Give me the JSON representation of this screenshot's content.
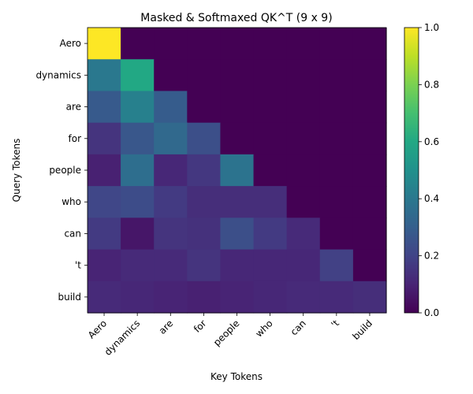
{
  "chart_data": {
    "type": "heatmap",
    "title": "Masked & Softmaxed QK^T (9 x 9)",
    "xlabel": "Key Tokens",
    "ylabel": "Query Tokens",
    "x_tokens": [
      "Aero",
      "dynamics",
      "are",
      "for",
      "people",
      "who",
      "can",
      "'t",
      "build"
    ],
    "y_tokens": [
      "Aero",
      "dynamics",
      "are",
      "for",
      "people",
      "who",
      "can",
      "'t",
      "build"
    ],
    "values": [
      [
        1.0,
        0.0,
        0.0,
        0.0,
        0.0,
        0.0,
        0.0,
        0.0,
        0.0
      ],
      [
        0.4,
        0.6,
        0.0,
        0.0,
        0.0,
        0.0,
        0.0,
        0.0,
        0.0
      ],
      [
        0.28,
        0.43,
        0.29,
        0.0,
        0.0,
        0.0,
        0.0,
        0.0,
        0.0
      ],
      [
        0.15,
        0.27,
        0.34,
        0.24,
        0.0,
        0.0,
        0.0,
        0.0,
        0.0
      ],
      [
        0.09,
        0.36,
        0.11,
        0.16,
        0.38,
        0.0,
        0.0,
        0.0,
        0.0
      ],
      [
        0.21,
        0.23,
        0.17,
        0.13,
        0.13,
        0.13,
        0.0,
        0.0,
        0.0
      ],
      [
        0.17,
        0.06,
        0.15,
        0.14,
        0.24,
        0.17,
        0.12,
        0.0,
        0.0
      ],
      [
        0.1,
        0.12,
        0.12,
        0.15,
        0.11,
        0.11,
        0.11,
        0.19,
        0.0
      ],
      [
        0.12,
        0.11,
        0.1,
        0.09,
        0.1,
        0.11,
        0.12,
        0.12,
        0.13
      ]
    ],
    "colorbar": {
      "min": 0,
      "max": 1,
      "ticks": [
        "0.0",
        "0.2",
        "0.4",
        "0.6",
        "0.8",
        "1.0"
      ]
    },
    "colormap": "viridis"
  }
}
